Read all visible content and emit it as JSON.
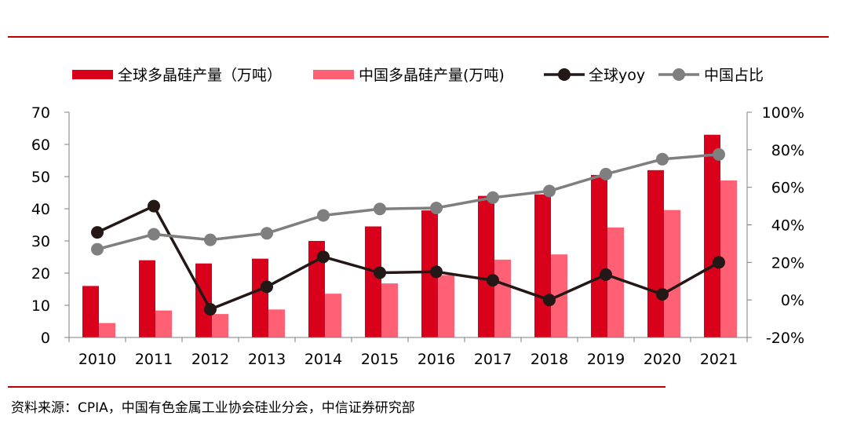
{
  "chart_data": {
    "type": "bar",
    "categories": [
      "2010",
      "2011",
      "2012",
      "2013",
      "2014",
      "2015",
      "2016",
      "2017",
      "2018",
      "2019",
      "2020",
      "2021"
    ],
    "series": [
      {
        "name": "全球多晶硅产量（万吨）",
        "type": "bar",
        "axis": "left",
        "color": "#d9001b",
        "values": [
          16,
          24,
          23,
          24.5,
          30,
          34.5,
          39.5,
          44,
          44.5,
          50.5,
          52,
          63
        ]
      },
      {
        "name": "中国多晶硅产量(万吨)",
        "type": "bar",
        "axis": "left",
        "color": "#ff6074",
        "values": [
          4.5,
          8.4,
          7.3,
          8.7,
          13.6,
          16.8,
          19.4,
          24.2,
          25.8,
          34.2,
          39.6,
          48.8
        ]
      },
      {
        "name": "全球yoy",
        "type": "line",
        "axis": "right",
        "color": "#231815",
        "values": [
          0.36,
          0.5,
          -0.05,
          0.07,
          0.23,
          0.145,
          0.15,
          0.105,
          0.0,
          0.135,
          0.03,
          0.2
        ]
      },
      {
        "name": "中国占比",
        "type": "line",
        "axis": "right",
        "color": "#7f7f7f",
        "values": [
          0.27,
          0.35,
          0.32,
          0.355,
          0.45,
          0.485,
          0.49,
          0.545,
          0.58,
          0.67,
          0.75,
          0.775
        ]
      }
    ],
    "y_left": {
      "min": 0,
      "max": 70,
      "ticks": [
        0,
        10,
        20,
        30,
        40,
        50,
        60,
        70
      ],
      "tick_labels": [
        "0",
        "10",
        "20",
        "30",
        "40",
        "50",
        "60",
        "70"
      ]
    },
    "y_right": {
      "min": -0.2,
      "max": 1.0,
      "ticks": [
        -0.2,
        0,
        0.2,
        0.4,
        0.6,
        0.8,
        1.0
      ],
      "tick_labels": [
        "-20%",
        "0%",
        "20%",
        "40%",
        "60%",
        "80%",
        "100%"
      ]
    },
    "grid": false,
    "legend_position": "top",
    "title": "",
    "xlabel": "",
    "ylabel": ""
  },
  "source": "资料来源：CPIA，中国有色金属工业协会硅业分会，中信证券研究部",
  "colors": {
    "rule": "#c00000",
    "axis": "#7f7f7f"
  }
}
